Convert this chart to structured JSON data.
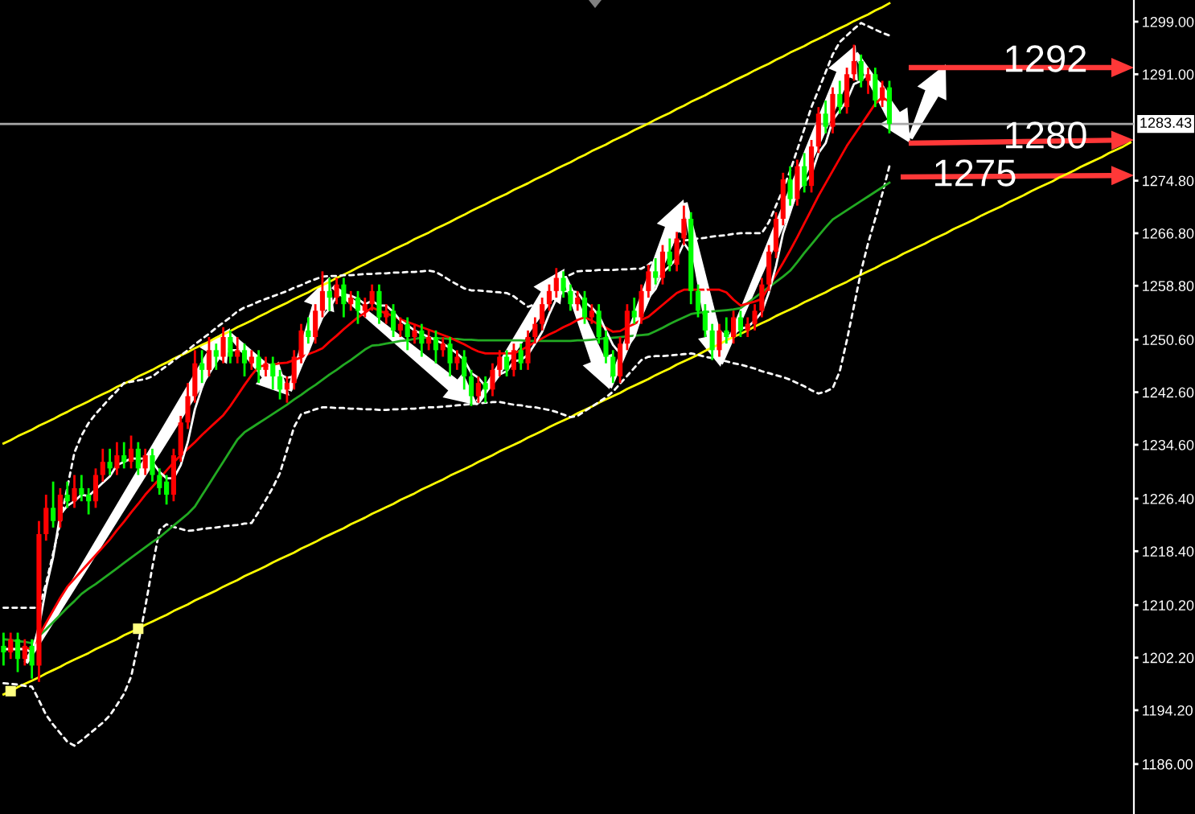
{
  "chart_data": {
    "type": "candlestick",
    "categories": [
      null,
      null,
      null,
      null,
      null,
      null,
      null,
      null,
      null,
      null,
      null,
      null,
      null,
      null,
      null,
      null,
      null,
      null,
      null,
      null,
      null,
      null,
      null,
      null,
      null,
      null,
      null,
      null,
      null,
      null,
      null,
      null,
      null,
      null,
      null,
      null,
      null,
      null,
      null,
      null,
      null,
      null,
      null,
      null,
      null,
      null,
      null,
      null,
      null,
      null,
      null,
      null,
      null,
      null,
      null,
      null,
      null,
      null,
      null,
      null,
      null,
      null,
      null,
      null,
      null,
      null,
      null,
      null,
      null,
      null,
      null,
      null,
      null,
      null,
      null,
      null,
      null,
      null,
      null,
      null,
      null,
      null,
      null,
      null,
      null,
      null,
      null,
      null,
      null,
      null,
      null,
      null,
      null,
      null,
      null,
      null,
      null,
      null,
      null,
      null,
      null,
      null,
      null,
      null,
      null,
      null,
      null,
      null,
      null,
      null,
      null,
      null,
      null,
      null,
      null,
      null,
      null,
      null,
      null,
      null,
      null,
      null,
      null,
      null,
      null,
      null,
      null,
      null,
      null,
      null,
      null,
      null,
      null,
      null,
      null,
      null,
      null,
      null,
      null,
      null,
      null,
      null,
      null,
      null,
      null,
      null,
      null,
      null,
      null,
      null,
      null,
      null,
      null,
      null,
      null,
      null,
      null,
      null,
      null,
      null
    ],
    "ohlc": [
      [
        1204,
        1206,
        1201,
        1203
      ],
      [
        1203,
        1206,
        1202,
        1205
      ],
      [
        1205,
        1206,
        1200,
        1202
      ],
      [
        1202,
        1205,
        1201,
        1204
      ],
      [
        1204,
        1205,
        1199,
        1201
      ],
      [
        1201,
        1223,
        1198.5,
        1221
      ],
      [
        1221,
        1227,
        1220,
        1225
      ],
      [
        1225,
        1229,
        1222,
        1223
      ],
      [
        1223,
        1228,
        1222,
        1227
      ],
      [
        1227,
        1229,
        1225,
        1226
      ],
      [
        1226,
        1230,
        1225,
        1228
      ],
      [
        1228,
        1230,
        1226,
        1227
      ],
      [
        1227,
        1228,
        1224,
        1226
      ],
      [
        1226,
        1231,
        1225,
        1230
      ],
      [
        1230,
        1234,
        1229,
        1232
      ],
      [
        1232,
        1234,
        1230,
        1231
      ],
      [
        1231,
        1235,
        1230,
        1233
      ],
      [
        1233,
        1235,
        1231,
        1232
      ],
      [
        1232,
        1236,
        1231,
        1234
      ],
      [
        1234,
        1235,
        1230,
        1231
      ],
      [
        1231,
        1234,
        1230,
        1233
      ],
      [
        1233,
        1234,
        1229,
        1230
      ],
      [
        1230,
        1231,
        1227,
        1228
      ],
      [
        1229,
        1230,
        1225.5,
        1227
      ],
      [
        1227,
        1234,
        1226,
        1233
      ],
      [
        1233,
        1239,
        1232,
        1238
      ],
      [
        1238,
        1244,
        1237,
        1242
      ],
      [
        1242,
        1249,
        1241,
        1247
      ],
      [
        1247,
        1249,
        1244,
        1246
      ],
      [
        1246,
        1251,
        1245,
        1249
      ],
      [
        1249,
        1250,
        1246,
        1248
      ],
      [
        1248,
        1252.5,
        1247,
        1251
      ],
      [
        1251,
        1252,
        1247,
        1248
      ],
      [
        1248,
        1251,
        1247,
        1249
      ],
      [
        1249,
        1250,
        1245,
        1247
      ],
      [
        1247,
        1249,
        1246,
        1248
      ],
      [
        1248,
        1249,
        1244,
        1246
      ],
      [
        1246,
        1248,
        1245,
        1247
      ],
      [
        1247,
        1248,
        1243,
        1245
      ],
      [
        1245,
        1246,
        1241.5,
        1243
      ],
      [
        1243,
        1245,
        1241,
        1244
      ],
      [
        1244,
        1249,
        1243,
        1248
      ],
      [
        1248,
        1253,
        1247,
        1252
      ],
      [
        1252,
        1254,
        1250,
        1251
      ],
      [
        1251,
        1256,
        1250,
        1255
      ],
      [
        1255,
        1261,
        1254,
        1258
      ],
      [
        1258,
        1260,
        1255,
        1257
      ],
      [
        1257,
        1260,
        1256,
        1259
      ],
      [
        1259,
        1260,
        1254,
        1256
      ],
      [
        1256,
        1258,
        1255,
        1257
      ],
      [
        1257,
        1258,
        1253,
        1255
      ],
      [
        1255,
        1257,
        1254,
        1256
      ],
      [
        1256,
        1259,
        1255,
        1258
      ],
      [
        1258,
        1259,
        1253,
        1254
      ],
      [
        1254,
        1256,
        1253,
        1255
      ],
      [
        1255,
        1256,
        1251,
        1252
      ],
      [
        1252,
        1254,
        1251,
        1253
      ],
      [
        1253,
        1254,
        1249,
        1251
      ],
      [
        1251,
        1253,
        1250,
        1252
      ],
      [
        1252,
        1253,
        1248,
        1250
      ],
      [
        1250,
        1252,
        1249,
        1251
      ],
      [
        1251,
        1252,
        1247,
        1249
      ],
      [
        1249,
        1251,
        1248,
        1250
      ],
      [
        1250,
        1251,
        1245,
        1247
      ],
      [
        1247,
        1249,
        1246,
        1248
      ],
      [
        1248,
        1249,
        1243,
        1245
      ],
      [
        1245,
        1246,
        1240.5,
        1242
      ],
      [
        1242,
        1245,
        1241,
        1244
      ],
      [
        1244,
        1245,
        1241,
        1243
      ],
      [
        1243,
        1247,
        1242,
        1246
      ],
      [
        1246,
        1249,
        1245,
        1248
      ],
      [
        1248,
        1249,
        1245,
        1246
      ],
      [
        1246,
        1250,
        1245,
        1249
      ],
      [
        1249,
        1250,
        1246,
        1247
      ],
      [
        1247,
        1252,
        1246,
        1251
      ],
      [
        1251,
        1254,
        1250,
        1253
      ],
      [
        1253,
        1257,
        1252,
        1256
      ],
      [
        1256,
        1259,
        1255,
        1258
      ],
      [
        1258,
        1261.5,
        1257,
        1260
      ],
      [
        1260,
        1261,
        1257,
        1258
      ],
      [
        1258,
        1259,
        1255,
        1256
      ],
      [
        1256,
        1258,
        1255,
        1257
      ],
      [
        1257,
        1258,
        1253,
        1254
      ],
      [
        1254,
        1256,
        1253,
        1255
      ],
      [
        1255,
        1256,
        1250,
        1251
      ],
      [
        1251,
        1252,
        1247,
        1248
      ],
      [
        1248,
        1249,
        1244,
        1245
      ],
      [
        1245,
        1251,
        1244,
        1250
      ],
      [
        1250,
        1256,
        1249,
        1255
      ],
      [
        1255,
        1257,
        1253,
        1254
      ],
      [
        1254,
        1259,
        1253,
        1258
      ],
      [
        1258,
        1262,
        1257,
        1261
      ],
      [
        1261,
        1263,
        1259,
        1260
      ],
      [
        1260,
        1265,
        1259,
        1264
      ],
      [
        1264,
        1266,
        1261,
        1262
      ],
      [
        1262,
        1267,
        1261,
        1266
      ],
      [
        1266,
        1271,
        1265,
        1269
      ],
      [
        1269,
        1270,
        1256,
        1258
      ],
      [
        1258,
        1259,
        1254,
        1255
      ],
      [
        1255,
        1256,
        1251,
        1252
      ],
      [
        1252,
        1253,
        1247.5,
        1249
      ],
      [
        1249,
        1253,
        1248,
        1252
      ],
      [
        1252,
        1254,
        1250,
        1251
      ],
      [
        1251,
        1255,
        1250,
        1254
      ],
      [
        1254,
        1255,
        1251,
        1252
      ],
      [
        1252,
        1254,
        1251,
        1253
      ],
      [
        1253,
        1256,
        1252,
        1255
      ],
      [
        1255,
        1260,
        1254,
        1259
      ],
      [
        1259,
        1265,
        1258,
        1264
      ],
      [
        1264,
        1270,
        1263,
        1269
      ],
      [
        1269,
        1276,
        1268,
        1275
      ],
      [
        1275,
        1277,
        1271,
        1272
      ],
      [
        1272,
        1278,
        1271,
        1277
      ],
      [
        1277,
        1279,
        1273,
        1274
      ],
      [
        1274,
        1281,
        1273,
        1280
      ],
      [
        1280,
        1286,
        1279,
        1285
      ],
      [
        1285,
        1287,
        1282,
        1283
      ],
      [
        1283,
        1289,
        1282,
        1288
      ],
      [
        1288,
        1290,
        1285,
        1286
      ],
      [
        1286,
        1292,
        1285,
        1291
      ],
      [
        1291,
        1295.5,
        1290,
        1293
      ],
      [
        1293,
        1294,
        1289,
        1290
      ],
      [
        1290,
        1292,
        1288,
        1291
      ],
      [
        1291,
        1292,
        1286,
        1287
      ],
      [
        1287,
        1290,
        1286,
        1289
      ],
      [
        1289,
        1290,
        1282,
        1283.43
      ],
      null,
      null,
      null,
      null,
      null,
      null,
      null,
      null,
      null,
      null,
      null,
      null,
      null,
      null,
      null,
      null,
      null,
      null,
      null,
      null,
      null,
      null,
      null,
      null,
      null,
      null,
      null,
      null,
      null,
      null,
      null,
      null,
      null,
      null
    ],
    "colors": [
      "#00ff00",
      "#ff0000",
      "#00ff00",
      "#ff0000",
      "#00ff00",
      "#ff0000",
      "#ff0000",
      "#00ff00",
      "#ff0000",
      "#00ff00",
      "#ff0000",
      "#00ff00",
      "#00ff00",
      "#ff0000",
      "#ff0000",
      "#00ff00",
      "#ff0000",
      "#00ff00",
      "#ff0000",
      "#00ff00",
      "#ff0000",
      "#00ff00",
      "#00ff00",
      "#00ff00",
      "#ff0000",
      "#ff0000",
      "#ff0000",
      "#ff0000",
      "#00ff00",
      "#ff0000",
      "#00ff00",
      "#ff0000",
      "#00ff00",
      "#ff0000",
      "#00ff00",
      "#ff0000",
      "#00ff00",
      "#ff0000",
      "#00ff00",
      "#00ff00",
      "#ff0000",
      "#ff0000",
      "#ff0000",
      "#00ff00",
      "#ff0000",
      "#ff0000",
      "#00ff00",
      "#ff0000",
      "#00ff00",
      "#ff0000",
      "#00ff00",
      "#ff0000",
      "#ff0000",
      "#00ff00",
      "#ff0000",
      "#00ff00",
      "#ff0000",
      "#00ff00",
      "#ff0000",
      "#00ff00",
      "#ff0000",
      "#00ff00",
      "#ff0000",
      "#00ff00",
      "#ff0000",
      "#00ff00",
      "#00ff00",
      "#ff0000",
      "#00ff00",
      "#ff0000",
      "#ff0000",
      "#00ff00",
      "#ff0000",
      "#00ff00",
      "#ff0000",
      "#ff0000",
      "#ff0000",
      "#ff0000",
      "#ff0000",
      "#00ff00",
      "#00ff00",
      "#ff0000",
      "#00ff00",
      "#ff0000",
      "#00ff00",
      "#00ff00",
      "#00ff00",
      "#ff0000",
      "#ff0000",
      "#00ff00",
      "#ff0000",
      "#ff0000",
      "#00ff00",
      "#ff0000",
      "#00ff00",
      "#ff0000",
      "#ff0000",
      "#00ff00",
      "#00ff00",
      "#00ff00",
      "#00ff00",
      "#ff0000",
      "#00ff00",
      "#ff0000",
      "#00ff00",
      "#ff0000",
      "#ff0000",
      "#ff0000",
      "#ff0000",
      "#ff0000",
      "#ff0000",
      "#00ff00",
      "#ff0000",
      "#00ff00",
      "#ff0000",
      "#ff0000",
      "#00ff00",
      "#ff0000",
      "#00ff00",
      "#ff0000",
      "#ff0000",
      "#00ff00",
      "#ff0000",
      "#00ff00",
      "#ff0000",
      "#00ff00",
      null,
      null,
      null,
      null,
      null,
      null,
      null,
      null,
      null,
      null,
      null,
      null,
      null,
      null,
      null,
      null,
      null,
      null,
      null,
      null,
      null,
      null,
      null,
      null,
      null,
      null,
      null,
      null,
      null,
      null,
      null,
      null,
      null,
      null
    ],
    "series": [
      {
        "type": "line",
        "color": "#ffff00",
        "values": [
          1234.8,
          1235.3,
          1235.9,
          1236.4,
          1236.9,
          1237.5,
          1238,
          1238.5,
          1239.1,
          1239.6,
          1240.2,
          1240.7,
          1241.2,
          1241.8,
          1242.3,
          1242.8,
          1243.4,
          1243.9,
          1244.4,
          1245,
          1245.5,
          1246,
          1246.6,
          1247.1,
          1247.7,
          1248.2,
          1248.7,
          1249.3,
          1249.8,
          1250.3,
          1250.9,
          1251.4,
          1251.9,
          1252.5,
          1253,
          1253.5,
          1254.1,
          1254.6,
          1255.2,
          1255.7,
          1256.2,
          1256.8,
          1257.3,
          1257.8,
          1258.4,
          1258.9,
          1259.4,
          1260,
          1260.5,
          1261,
          1261.6,
          1262.1,
          1262.7,
          1263.2,
          1263.7,
          1264.3,
          1264.8,
          1265.3,
          1265.9,
          1266.4,
          1266.9,
          1267.5,
          1268,
          1268.5,
          1269.1,
          1269.6,
          1270.2,
          1270.7,
          1271.2,
          1271.8,
          1272.3,
          1272.8,
          1273.4,
          1273.9,
          1274.4,
          1275,
          1275.5,
          1276,
          1276.6,
          1277.1,
          1277.6,
          1278.2,
          1278.7,
          1279.3,
          1279.8,
          1280.3,
          1280.9,
          1281.4,
          1281.9,
          1282.5,
          1283,
          1283.5,
          1284.1,
          1284.6,
          1285.1,
          1285.7,
          1286.2,
          1286.8,
          1287.3,
          1287.8,
          1288.4,
          1288.9,
          1289.4,
          1290,
          1290.5,
          1291,
          1291.6,
          1292.1,
          1292.6,
          1293.2,
          1293.7,
          1294.3,
          1294.8,
          1295.3,
          1295.9,
          1296.4,
          1296.9,
          1297.5,
          1298,
          1298.5,
          1299.1,
          1299.6,
          1300.1,
          1300.7,
          1301.2,
          1301.8,
          null,
          null,
          null,
          null,
          null,
          null,
          null,
          null,
          null,
          null,
          null,
          null,
          null,
          null,
          null,
          null,
          null,
          null,
          null,
          null,
          null,
          null,
          null,
          null,
          null,
          null,
          null,
          null,
          null,
          null,
          null,
          null,
          null,
          null
        ]
      },
      {
        "type": "line",
        "color": "#ffff00",
        "values": [
          1196.6,
          1197.1,
          1197.7,
          1198.2,
          1198.7,
          1199.2,
          1199.8,
          1200.3,
          1200.8,
          1201.4,
          1201.9,
          1202.4,
          1202.9,
          1203.5,
          1204,
          1204.5,
          1205,
          1205.6,
          1206.1,
          1206.6,
          1207.2,
          1207.7,
          1208.2,
          1208.7,
          1209.3,
          1209.8,
          1210.3,
          1210.9,
          1211.4,
          1211.9,
          1212.4,
          1213,
          1213.5,
          1214,
          1214.6,
          1215.1,
          1215.6,
          1216.1,
          1216.7,
          1217.2,
          1217.7,
          1218.2,
          1218.8,
          1219.3,
          1219.8,
          1220.4,
          1220.9,
          1221.4,
          1221.9,
          1222.5,
          1223,
          1223.5,
          1224.1,
          1224.6,
          1225.1,
          1225.6,
          1226.2,
          1226.7,
          1227.2,
          1227.8,
          1228.3,
          1228.8,
          1229.3,
          1229.9,
          1230.4,
          1230.9,
          1231.4,
          1232,
          1232.5,
          1233,
          1233.6,
          1234.1,
          1234.6,
          1235.1,
          1235.7,
          1236.2,
          1236.7,
          1237.3,
          1237.8,
          1238.3,
          1238.8,
          1239.4,
          1239.9,
          1240.4,
          1241,
          1241.5,
          1242,
          1242.5,
          1243.1,
          1243.6,
          1244.1,
          1244.6,
          1245.2,
          1245.7,
          1246.2,
          1246.8,
          1247.3,
          1247.8,
          1248.3,
          1248.9,
          1249.4,
          1249.9,
          1250.5,
          1251,
          1251.5,
          1252,
          1252.6,
          1253.1,
          1253.6,
          1254.2,
          1254.7,
          1255.2,
          1255.7,
          1256.3,
          1256.8,
          1257.3,
          1257.8,
          1258.4,
          1258.9,
          1259.4,
          1260,
          1260.5,
          1261,
          1261.5,
          1262.1,
          1262.6,
          1263.1,
          1263.7,
          1264.2,
          1264.7,
          1265.2,
          1265.8,
          1266.3,
          1266.8,
          1267.4,
          1267.9,
          1268.4,
          1268.9,
          1269.5,
          1270,
          1270.5,
          1271,
          1271.6,
          1272.1,
          1272.6,
          1273.2,
          1273.7,
          1274.2,
          1274.7,
          1275.3,
          1275.8,
          1276.3,
          1276.9,
          1277.4,
          1277.9,
          1278.4,
          1279,
          1279.5,
          1280,
          1280.6
        ]
      },
      {
        "type": "scatter",
        "color": "#ffff80",
        "marker": "square",
        "values": [
          null,
          1197.1,
          null,
          null,
          null,
          null,
          null,
          null,
          null,
          null,
          null,
          null,
          null,
          null,
          null,
          null,
          null,
          null,
          null,
          1206.6,
          null,
          null,
          null,
          null,
          null,
          null,
          null,
          null,
          null,
          null,
          null,
          null,
          null,
          null,
          null,
          null,
          null,
          null,
          null,
          null,
          null,
          null,
          null,
          null,
          null,
          null,
          null,
          null,
          null,
          null,
          null,
          null,
          null,
          null,
          null,
          null,
          null,
          null,
          null,
          null,
          null,
          null,
          null,
          null,
          null,
          null,
          null,
          null,
          null,
          null,
          null,
          null,
          null,
          null,
          null,
          null,
          null,
          null,
          null,
          null,
          null,
          null,
          null,
          null,
          null,
          null,
          null,
          null,
          null,
          null,
          null,
          null,
          null,
          null,
          null,
          null,
          null,
          null,
          null,
          null,
          null,
          null,
          null,
          null,
          null,
          null,
          null,
          null,
          null,
          null,
          null,
          null,
          null,
          null,
          null,
          null,
          null,
          null,
          null,
          null,
          null,
          null,
          null,
          null,
          null,
          null,
          null,
          null,
          null,
          null,
          null,
          null,
          null,
          null,
          null,
          null,
          null,
          null,
          null,
          null,
          null,
          null,
          null,
          null,
          null,
          null,
          null,
          null,
          null,
          null,
          null,
          null,
          null,
          null,
          null,
          null,
          null,
          null,
          null,
          null
        ]
      },
      {
        "type": "line",
        "color": "#ffffff",
        "line_style": "dashed",
        "values": [
          1209.8,
          1209.8,
          1209.8,
          1209.8,
          1209.8,
          1209.8,
          1213.5,
          1218.1,
          1222.7,
          1228.1,
          1233.4,
          1236,
          1237.9,
          1239.3,
          1240.5,
          1241.7,
          1242.8,
          1244,
          1244.2,
          1244.4,
          1244.6,
          1245,
          1245.8,
          1246.6,
          1247.4,
          1248.2,
          1249,
          1249.9,
          1250.7,
          1251.5,
          1252.4,
          1253.2,
          1254,
          1254.9,
          1255.5,
          1255.9,
          1256.4,
          1256.8,
          1257.2,
          1257.6,
          1258,
          1258.5,
          1258.9,
          1259.4,
          1259.8,
          1260.2,
          1260.3,
          1260.3,
          1260.4,
          1260.4,
          1260.5,
          1260.6,
          1260.6,
          1260.7,
          1260.7,
          1260.8,
          1260.8,
          1260.9,
          1260.9,
          1261,
          1261.1,
          1260.9,
          1260.3,
          1259.6,
          1259,
          1258.4,
          1258.1,
          1258.1,
          1258,
          1257.9,
          1257.8,
          1257.7,
          1257.2,
          1256.4,
          1255.6,
          1256,
          1257.2,
          1258.4,
          1259.5,
          1260,
          1260.5,
          1261,
          1261.1,
          1261.1,
          1261.2,
          1261.2,
          1261.2,
          1261.3,
          1261.3,
          1261.4,
          1261.4,
          1262,
          1262.9,
          1263.9,
          1264.8,
          1265.5,
          1265.7,
          1265.8,
          1266,
          1266.1,
          1266.3,
          1266.4,
          1266.5,
          1266.7,
          1266.8,
          1266.8,
          1266.8,
          1266.8,
          1268.5,
          1271,
          1273.5,
          1276.3,
          1279.5,
          1282.7,
          1286,
          1288.6,
          1291.3,
          1294,
          1295.9,
          1296.9,
          1297.9,
          1298.8,
          1298.3,
          1297.8,
          1297.3,
          1296.9,
          null,
          null,
          null,
          null,
          null,
          null,
          null,
          null,
          null,
          null,
          null,
          null,
          null,
          null,
          null,
          null,
          null,
          null,
          null,
          null,
          null,
          null,
          null,
          null,
          null,
          null,
          null,
          null,
          null,
          null,
          null,
          null,
          null,
          null
        ]
      },
      {
        "type": "line",
        "color": "#ffffff",
        "line_style": "dashed",
        "values": [
          1198.3,
          1198.2,
          1198.1,
          1197.9,
          1197.8,
          1195.7,
          1193.5,
          1192,
          1190.7,
          1189.4,
          1188.8,
          1189.6,
          1190.5,
          1191.4,
          1192.3,
          1193.4,
          1195,
          1196.7,
          1199.3,
          1204.3,
          1209.9,
          1216,
          1221.6,
          1222.5,
          1222.1,
          1221.8,
          1221.5,
          1221.6,
          1221.8,
          1221.9,
          1222,
          1222.2,
          1222.3,
          1222.4,
          1222.6,
          1222.7,
          1224.4,
          1226.2,
          1228.1,
          1230.3,
          1233.8,
          1237.3,
          1239.3,
          1239.6,
          1240,
          1240.3,
          1240.3,
          1240.2,
          1240.2,
          1240.1,
          1240.1,
          1240,
          1240,
          1239.9,
          1239.9,
          1240,
          1240,
          1240.1,
          1240.1,
          1240.2,
          1240.3,
          1240.3,
          1240.4,
          1240.5,
          1240.6,
          1240.7,
          1240.8,
          1240.9,
          1241,
          1241.1,
          1241.1,
          1240.9,
          1240.7,
          1240.6,
          1240.4,
          1240.3,
          1240.1,
          1239.9,
          1239.6,
          1239.2,
          1238.8,
          1239,
          1239.7,
          1240.4,
          1241.1,
          1241.8,
          1242.7,
          1243.9,
          1245.1,
          1246.3,
          1247.5,
          1248,
          1248.1,
          1248.1,
          1248.2,
          1248.3,
          1248.4,
          1248.5,
          1248.3,
          1248,
          1247.8,
          1247.5,
          1247.3,
          1247,
          1246.8,
          1246.5,
          1246.2,
          1245.8,
          1245.5,
          1245.2,
          1244.9,
          1244.5,
          1244,
          1243.5,
          1242.9,
          1242.4,
          1242.7,
          1243.2,
          1245.8,
          1250.5,
          1255.7,
          1261,
          1265.3,
          1269,
          1272.8,
          1277,
          null,
          null,
          null,
          null,
          null,
          null,
          null,
          null,
          null,
          null,
          null,
          null,
          null,
          null,
          null,
          null,
          null,
          null,
          null,
          null,
          null,
          null,
          null,
          null,
          null,
          null,
          null,
          null,
          null,
          null,
          null,
          null,
          null,
          null
        ]
      },
      {
        "type": "line",
        "color": "#22aa22",
        "values": [
          1205,
          1204.9,
          1204.7,
          1204.6,
          1204.4,
          1205.5,
          1206.5,
          1207.6,
          1208.7,
          1209.8,
          1210.8,
          1211.9,
          1212.7,
          1213.4,
          1214.2,
          1215,
          1215.8,
          1216.6,
          1217.4,
          1218.2,
          1219,
          1219.8,
          1220.5,
          1221.4,
          1222.3,
          1223.2,
          1224.1,
          1225.2,
          1226.9,
          1228.6,
          1230.3,
          1232,
          1233.7,
          1235.4,
          1236.5,
          1237.2,
          1237.9,
          1238.6,
          1239.3,
          1240,
          1240.7,
          1241.5,
          1242.2,
          1243,
          1243.7,
          1244.5,
          1245.3,
          1246,
          1246.8,
          1247.5,
          1248.3,
          1249.1,
          1249.7,
          1249.8,
          1250,
          1250.2,
          1250.4,
          1250.5,
          1250.7,
          1250.9,
          1250.9,
          1250.8,
          1250.8,
          1250.7,
          1250.7,
          1250.6,
          1250.6,
          1250.5,
          1250.5,
          1250.5,
          1250.5,
          1250.5,
          1250.5,
          1250.5,
          1250.4,
          1250.4,
          1250.4,
          1250.4,
          1250.4,
          1250.4,
          1250.4,
          1250.5,
          1250.5,
          1250.6,
          1250.7,
          1250.8,
          1250.9,
          1251,
          1251.1,
          1251.2,
          1251.3,
          1251.4,
          1251.9,
          1252.4,
          1253,
          1253.5,
          1254,
          1254.5,
          1254.7,
          1254.8,
          1254.9,
          1255,
          1255.1,
          1255.2,
          1255.4,
          1256.2,
          1257,
          1257.8,
          1258.6,
          1259.4,
          1260.2,
          1261.1,
          1262.4,
          1263.8,
          1265.1,
          1266.4,
          1267.7,
          1268.9,
          1269.6,
          1270.3,
          1271,
          1271.7,
          1272.4,
          1273.1,
          1273.8,
          1274.5,
          null,
          null,
          null,
          null,
          null,
          null,
          null,
          null,
          null,
          null,
          null,
          null,
          null,
          null,
          null,
          null,
          null,
          null,
          null,
          null,
          null,
          null,
          null,
          null,
          null,
          null,
          null,
          null,
          null,
          null,
          null,
          null,
          null,
          null
        ]
      },
      {
        "type": "line",
        "color": "#ff0000",
        "values": [
          1203.5,
          1203.5,
          1203.5,
          1203.6,
          1203.6,
          1205.5,
          1207.5,
          1209.4,
          1211.3,
          1213,
          1214.2,
          1215.4,
          1216.6,
          1217.8,
          1219,
          1220.2,
          1221.6,
          1222.9,
          1224.3,
          1225.6,
          1227,
          1228.2,
          1229.4,
          1230.7,
          1231.9,
          1233,
          1234,
          1235,
          1236.1,
          1237.1,
          1238.1,
          1239.1,
          1240.5,
          1242.1,
          1243.7,
          1245.2,
          1246.5,
          1246.7,
          1246.8,
          1247,
          1247.1,
          1247.5,
          1247.9,
          1248.4,
          1248.8,
          1249.3,
          1250.3,
          1251.2,
          1252.2,
          1253.1,
          1254,
          1254.7,
          1255.5,
          1255,
          1254.6,
          1254.2,
          1253.7,
          1253.3,
          1252.9,
          1252.5,
          1252.1,
          1251.7,
          1251.3,
          1250.9,
          1250.4,
          1249.9,
          1249.3,
          1248.8,
          1248.5,
          1248.5,
          1248.5,
          1248.5,
          1248.5,
          1249,
          1249.6,
          1250.2,
          1250.8,
          1251.4,
          1251.9,
          1252.5,
          1253,
          1253.6,
          1254,
          1253.5,
          1252.9,
          1252.4,
          1251.8,
          1251.9,
          1252.5,
          1253,
          1253.6,
          1254.1,
          1255,
          1255.9,
          1256.8,
          1257.7,
          1258.2,
          1258.2,
          1258.2,
          1258.2,
          1258.2,
          1258.2,
          1257.8,
          1256.7,
          1255.8,
          1256.1,
          1256.4,
          1256.8,
          1258.7,
          1260.5,
          1262.3,
          1264.2,
          1266.2,
          1268.3,
          1270.4,
          1272.5,
          1274.4,
          1276.3,
          1278.2,
          1280.1,
          1281.7,
          1283.3,
          1284.9,
          1286.5,
          1287.5,
          1286.8,
          null,
          null,
          null,
          null,
          null,
          null,
          null,
          null,
          null,
          null,
          null,
          null,
          null,
          null,
          null,
          null,
          null,
          null,
          null,
          null,
          null,
          null,
          null,
          null,
          null,
          null,
          null,
          null,
          null,
          null,
          null,
          null,
          null,
          null
        ]
      },
      {
        "type": "line",
        "color": "#ffffff",
        "values": [
          1203.5,
          1203.5,
          1203.5,
          1203.5,
          1203,
          1207,
          1212.8,
          1217.5,
          1224,
          1225.3,
          1226,
          1227,
          1226.8,
          1227.8,
          1228.8,
          1229.8,
          1231.5,
          1232,
          1232.5,
          1232.5,
          1232.5,
          1232,
          1230.5,
          1229.5,
          1229.5,
          1231.5,
          1235,
          1240,
          1243.3,
          1246,
          1247.5,
          1248.5,
          1249,
          1249,
          1248.8,
          1248,
          1247.5,
          1247,
          1246.5,
          1245.3,
          1244.8,
          1245,
          1246.8,
          1248.8,
          1251.5,
          1254,
          1255.3,
          1257.3,
          1257.5,
          1257.3,
          1256.8,
          1256,
          1256.5,
          1255.8,
          1255.8,
          1254.8,
          1253.5,
          1252.8,
          1252,
          1251.5,
          1251,
          1250.5,
          1250,
          1249.3,
          1248.5,
          1247.5,
          1245.5,
          1244.8,
          1243.5,
          1243.8,
          1245.3,
          1245.8,
          1247.3,
          1247.5,
          1248.3,
          1250,
          1251.8,
          1254.5,
          1256.8,
          1258,
          1258,
          1257.8,
          1256.3,
          1255.5,
          1254.3,
          1252,
          1249.8,
          1248.5,
          1249.5,
          1251,
          1254.3,
          1257,
          1258.3,
          1260.8,
          1261.8,
          1263,
          1265.3,
          1263.8,
          1262,
          1258.5,
          1253.5,
          1252,
          1251,
          1251.5,
          1252.3,
          1252.5,
          1253.5,
          1254.8,
          1257.8,
          1261.8,
          1266.8,
          1270,
          1273.3,
          1274.5,
          1275.8,
          1279,
          1280.5,
          1284,
          1285.5,
          1287,
          1289.5,
          1290,
          1291.3,
          1290.3,
          1289.3,
          1287.6,
          null,
          null,
          null,
          null,
          null,
          null,
          null,
          null,
          null,
          null,
          null,
          null,
          null,
          null,
          null,
          null,
          null,
          null,
          null,
          null,
          null,
          null,
          null,
          null,
          null,
          null,
          null,
          null,
          null,
          null,
          null,
          null,
          null,
          null
        ]
      }
    ],
    "ylim": [
      1178.4,
      1302.3
    ],
    "yticks": [
      {
        "value": 1299,
        "label": "1299.00"
      },
      {
        "value": 1291,
        "label": "1291.00"
      },
      {
        "value": 1274.8,
        "label": "1274.80"
      },
      {
        "value": 1266.8,
        "label": "1266.80"
      },
      {
        "value": 1258.8,
        "label": "1258.80"
      },
      {
        "value": 1250.6,
        "label": "1250.60"
      },
      {
        "value": 1242.6,
        "label": "1242.60"
      },
      {
        "value": 1234.6,
        "label": "1234.60"
      },
      {
        "value": 1226.4,
        "label": "1226.40"
      },
      {
        "value": 1218.4,
        "label": "1218.40"
      },
      {
        "value": 1210.2,
        "label": "1210.20"
      },
      {
        "value": 1202.2,
        "label": "1202.20"
      },
      {
        "value": 1194.2,
        "label": "1194.20"
      },
      {
        "value": 1186,
        "label": "1186.00"
      }
    ],
    "ref_lines": [
      {
        "axis": "y",
        "value": 1283.43,
        "label": "1283.43",
        "color": "#a8a8a8"
      }
    ],
    "annotations": [
      "1292",
      "1280",
      "1275"
    ],
    "tick_labels": "y"
  }
}
